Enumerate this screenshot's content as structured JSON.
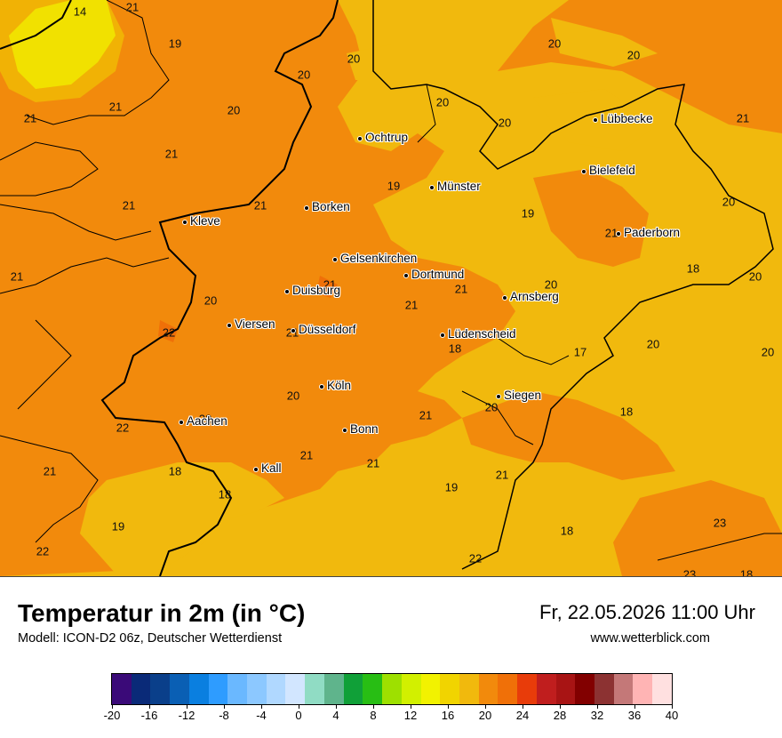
{
  "title": "Temperatur in 2m (in °C)",
  "subtitle": "Modell: ICON-D2 06z, Deutscher Wetterdienst",
  "datetime": "Fr, 22.05.2026 11:00 Uhr",
  "website": "www.wetterblick.com",
  "colors": {
    "t14_16": "#f2f200",
    "t16_18": "#f1d400",
    "t18_20": "#f1b90d",
    "t20_22": "#f28a0c",
    "t22_24": "#f07008",
    "border": "#000000"
  },
  "cities": [
    {
      "name": "Ochtrup"
    },
    {
      "name": "Lübbecke"
    },
    {
      "name": "Bielefeld"
    },
    {
      "name": "Münster"
    },
    {
      "name": "Borken"
    },
    {
      "name": "Kleve"
    },
    {
      "name": "Paderborn"
    },
    {
      "name": "Gelsenkirchen"
    },
    {
      "name": "Dortmund"
    },
    {
      "name": "Duisburg"
    },
    {
      "name": "Arnsberg"
    },
    {
      "name": "Viersen"
    },
    {
      "name": "Düsseldorf"
    },
    {
      "name": "Lüdenscheid"
    },
    {
      "name": "Köln"
    },
    {
      "name": "Siegen"
    },
    {
      "name": "Aachen"
    },
    {
      "name": "Bonn"
    },
    {
      "name": "Kall"
    }
  ],
  "temperatures": [
    "14",
    "21",
    "19",
    "20",
    "20",
    "20",
    "20",
    "20",
    "20",
    "21",
    "21",
    "21",
    "20",
    "21",
    "19",
    "19",
    "21",
    "21",
    "21",
    "21",
    "20",
    "21",
    "21",
    "20",
    "20",
    "18",
    "20",
    "21",
    "21",
    "22",
    "20",
    "17",
    "20",
    "20",
    "21",
    "18",
    "22",
    "22",
    "20",
    "21",
    "21",
    "18",
    "18",
    "21",
    "19",
    "21",
    "22",
    "18",
    "19",
    "23",
    "18",
    "22",
    "23",
    "18"
  ],
  "colorbar": {
    "labels": [
      "-20",
      "-16",
      "-12",
      "-8",
      "-4",
      "0",
      "4",
      "8",
      "12",
      "16",
      "20",
      "24",
      "28",
      "32",
      "36",
      "40"
    ],
    "colors": [
      "#3a0a78",
      "#0a2a78",
      "#0a3f8a",
      "#0a5fb4",
      "#0a7fe0",
      "#2e9cff",
      "#6ab8ff",
      "#8cc8ff",
      "#b0d8ff",
      "#d2e6ff",
      "#90dcc4",
      "#5fb48c",
      "#10a038",
      "#28be14",
      "#9ee000",
      "#d2f000",
      "#f2f200",
      "#f1d400",
      "#f1b90d",
      "#f28a0c",
      "#f07008",
      "#e83c0a",
      "#c01e1e",
      "#a81414",
      "#820000",
      "#8c3232",
      "#c47878",
      "#ffb4b4",
      "#ffe0e0"
    ]
  }
}
